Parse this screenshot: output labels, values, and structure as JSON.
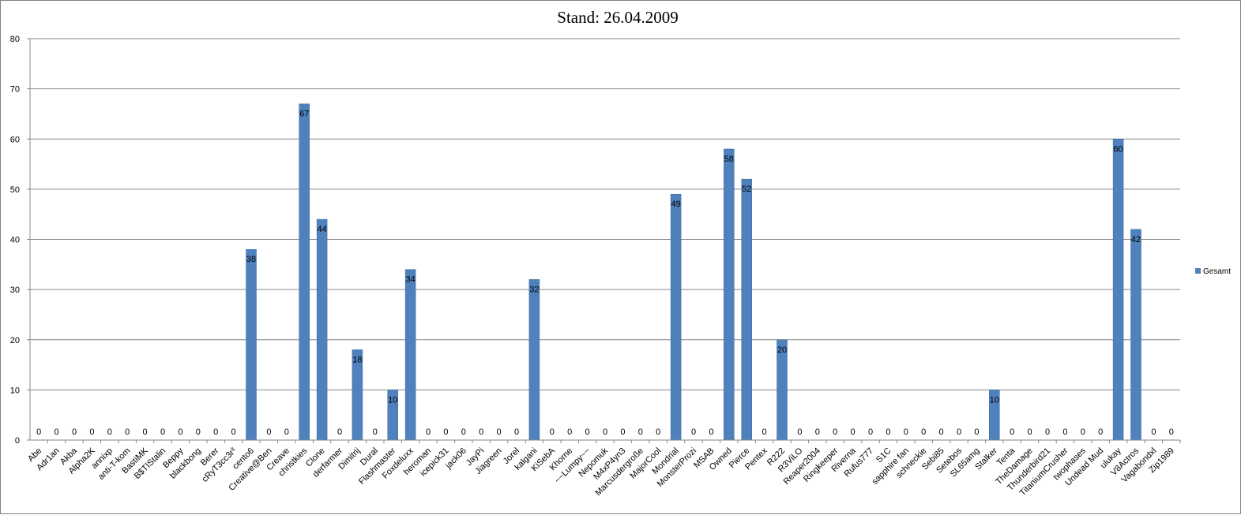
{
  "chart_data": {
    "type": "bar",
    "title": "Stand: 26.04.2009",
    "xlabel": "",
    "ylabel": "",
    "ylim": [
      0,
      80
    ],
    "yticks": [
      0,
      10,
      20,
      30,
      40,
      50,
      60,
      70,
      80
    ],
    "grid": true,
    "legend_position": "right",
    "bar_color": "#4F81BD",
    "categories": [
      "Abe",
      "Adr1an",
      "Akba",
      "Alpha2K",
      "annixp",
      "anti-T-kom",
      "BastiMK",
      "B$TIStalin",
      "Beppy",
      "blackbong",
      "Berer",
      "cRyT3cc3r³",
      "cento6",
      "Creative@Ben",
      "Creave",
      "christkies",
      "Clone",
      "derfarmer",
      "Dimitrij",
      "Dural",
      "Flashmaster",
      "Foxdeluxx",
      "heroman",
      "icepick31",
      "jack06",
      "JayPi",
      "Jiagreen",
      "Jorel",
      "kalgani",
      "KiSebA",
      "Khorne",
      "~~Lumpy~~",
      "Nepomuk",
      "M4xP4yn3",
      "Marcusdergroße",
      "MajorCool",
      "Mondrial",
      "MonsterProzi",
      "MSAB",
      "Owned",
      "Pierce",
      "Pentex",
      "R222",
      "R3ViLO",
      "Reaper2004",
      "Ringkeeper",
      "Riverna",
      "Rufus777",
      "S1C",
      "sapphire fan",
      "schneckie",
      "Sebi85",
      "Setebos",
      "SL65amg",
      "Stalker",
      "Tenta",
      "TheDamage",
      "Thunderbird21",
      "TitaniumCrusher",
      "twophases",
      "Undead Mud",
      "ulukay",
      "V8Actros",
      "Vagabondxl",
      "Zip1989"
    ],
    "series": [
      {
        "name": "Gesamt",
        "values": [
          0,
          0,
          0,
          0,
          0,
          0,
          0,
          0,
          0,
          0,
          0,
          0,
          38,
          0,
          0,
          67,
          44,
          0,
          18,
          0,
          10,
          34,
          0,
          0,
          0,
          0,
          0,
          0,
          32,
          0,
          0,
          0,
          0,
          0,
          0,
          0,
          49,
          0,
          0,
          58,
          52,
          0,
          20,
          0,
          0,
          0,
          0,
          0,
          0,
          0,
          0,
          0,
          0,
          0,
          10,
          0,
          0,
          0,
          0,
          0,
          0,
          60,
          42,
          0,
          0
        ]
      }
    ]
  }
}
